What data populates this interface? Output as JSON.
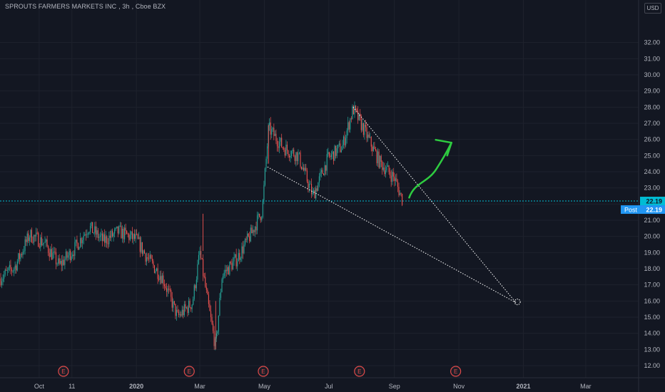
{
  "header": {
    "symbol": "SPROUTS FARMERS MARKETS INC",
    "interval": "3h",
    "exchange": "Cboe BZX",
    "currency": "USD"
  },
  "colors": {
    "background": "#131722",
    "grid": "#1e222d",
    "up": "#26a69a",
    "down": "#ef5350",
    "price_line": "#00bcd4",
    "arrow": "#2ecc40",
    "earnings": "#e04a4a",
    "axis_text": "#b2b5be",
    "label_bg": "#2196f3"
  },
  "price_label": {
    "value": "22.19",
    "session": "Post",
    "session_value": "22.19"
  },
  "earnings_marker": "E",
  "chart_data": {
    "type": "candlestick",
    "title": "SPROUTS FARMERS MARKETS INC, 3h, Cboe BZX",
    "ylabel": "",
    "ylim": [
      11.5,
      33.0
    ],
    "y_ticks": [
      "12.00",
      "13.00",
      "14.00",
      "15.00",
      "16.00",
      "17.00",
      "18.00",
      "19.00",
      "20.00",
      "21.00",
      "22.00",
      "23.00",
      "24.00",
      "25.00",
      "26.00",
      "27.00",
      "28.00",
      "29.00",
      "30.00",
      "31.00",
      "32.00"
    ],
    "x_ticks": [
      "Oct",
      "11",
      "2020",
      "Mar",
      "May",
      "Jul",
      "Sep",
      "Nov",
      "2021",
      "Mar"
    ],
    "x_range": [
      "2019-08-25",
      "2021-04-20"
    ],
    "price_trend": [
      {
        "date": "2019-08-25",
        "close": 17.4
      },
      {
        "date": "2019-09-08",
        "close": 18.1
      },
      {
        "date": "2019-09-22",
        "close": 20.1
      },
      {
        "date": "2019-10-06",
        "close": 19.6
      },
      {
        "date": "2019-10-20",
        "close": 18.2
      },
      {
        "date": "2019-11-03",
        "close": 19.2
      },
      {
        "date": "2019-11-17",
        "close": 20.6
      },
      {
        "date": "2019-12-01",
        "close": 19.7
      },
      {
        "date": "2019-12-15",
        "close": 20.3
      },
      {
        "date": "2020-01-01",
        "close": 19.8
      },
      {
        "date": "2020-01-12",
        "close": 18.6
      },
      {
        "date": "2020-01-26",
        "close": 17.4
      },
      {
        "date": "2020-02-09",
        "close": 15.0
      },
      {
        "date": "2020-02-23",
        "close": 15.9
      },
      {
        "date": "2020-03-01",
        "close": 19.0
      },
      {
        "date": "2020-03-08",
        "close": 16.1
      },
      {
        "date": "2020-03-16",
        "close": 13.1
      },
      {
        "date": "2020-03-22",
        "close": 17.6
      },
      {
        "date": "2020-04-05",
        "close": 18.6
      },
      {
        "date": "2020-04-19",
        "close": 20.2
      },
      {
        "date": "2020-04-29",
        "close": 21.6
      },
      {
        "date": "2020-05-05",
        "close": 26.7
      },
      {
        "date": "2020-05-19",
        "close": 25.5
      },
      {
        "date": "2020-06-02",
        "close": 25.0
      },
      {
        "date": "2020-06-16",
        "close": 22.5
      },
      {
        "date": "2020-06-30",
        "close": 24.8
      },
      {
        "date": "2020-07-14",
        "close": 25.6
      },
      {
        "date": "2020-07-24",
        "close": 27.9
      },
      {
        "date": "2020-08-04",
        "close": 26.5
      },
      {
        "date": "2020-08-18",
        "close": 24.6
      },
      {
        "date": "2020-09-01",
        "close": 23.6
      },
      {
        "date": "2020-09-09",
        "close": 22.19
      }
    ],
    "current_price": 22.19,
    "earnings_dates": [
      "2019-10-24",
      "2020-02-20",
      "2020-04-30",
      "2020-07-30",
      "2020-10-29"
    ],
    "annotations": {
      "wedge_upper": [
        {
          "date": "2020-07-24",
          "price": 28.0
        },
        {
          "date": "2020-12-25",
          "price": 15.9
        }
      ],
      "wedge_lower": [
        {
          "date": "2020-05-04",
          "price": 24.3
        },
        {
          "date": "2020-12-25",
          "price": 15.9
        }
      ],
      "arrow": [
        {
          "date": "2020-09-15",
          "price": 22.4
        },
        {
          "date": "2020-10-25",
          "price": 25.8
        }
      ]
    }
  }
}
